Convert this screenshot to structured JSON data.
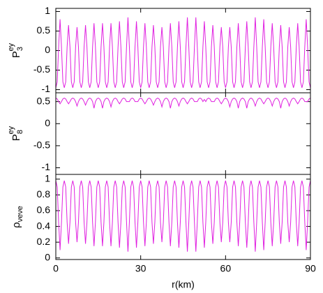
{
  "chart_data": [
    {
      "type": "line",
      "ylabel": {
        "base": "P",
        "sub": "3",
        "sup": "ey"
      },
      "x": [
        0,
        0.5,
        1,
        1.5,
        2,
        2.5,
        3,
        3.5,
        4,
        4.5,
        5,
        5.5,
        6,
        6.5,
        7,
        7.5,
        8,
        8.5,
        9,
        9.5,
        10,
        10.5,
        11,
        11.5,
        12,
        12.5,
        13,
        13.5,
        14,
        14.5,
        15,
        15.5,
        16,
        16.5,
        17,
        17.5,
        18,
        18.5,
        19,
        19.5,
        20,
        20.5,
        21,
        21.5,
        22,
        22.5,
        23,
        23.5,
        24,
        24.5,
        25,
        25.5,
        26,
        26.5,
        27,
        27.5,
        28,
        28.5,
        29,
        29.5,
        30,
        30.5,
        31,
        31.5,
        32,
        32.5,
        33,
        33.5,
        34,
        34.5,
        35,
        35.5,
        36,
        36.5,
        37,
        37.5,
        38,
        38.5,
        39,
        39.5,
        40,
        40.5,
        41,
        41.5,
        42,
        42.5,
        43,
        43.5,
        44,
        44.5,
        45,
        45.5,
        46,
        46.5,
        47,
        47.5,
        48,
        48.5,
        49,
        49.5,
        50,
        50.5,
        51,
        51.5,
        52,
        52.5,
        53,
        53.5,
        54,
        54.5,
        55,
        55.5,
        56,
        56.5,
        57,
        57.5,
        58,
        58.5,
        59,
        59.5,
        60,
        60.5,
        61,
        61.5,
        62,
        62.5,
        63,
        63.5,
        64,
        64.5,
        65,
        65.5,
        66,
        66.5,
        67,
        67.5,
        68,
        68.5,
        69,
        69.5,
        70,
        70.5,
        71,
        71.5,
        72,
        72.5,
        73,
        73.5,
        74,
        74.5,
        75,
        75.5,
        76,
        76.5,
        77,
        77.5,
        78,
        78.5,
        79,
        79.5,
        80,
        80.5,
        81,
        81.5,
        82,
        82.5,
        83,
        83.5,
        84,
        84.5,
        85,
        85.5,
        86,
        86.5,
        87,
        87.5,
        88,
        88.5,
        89,
        89.5,
        90
      ],
      "series": [
        {
          "color": "#e020e0",
          "values": [
            -0.95,
            -0.8,
            0.1,
            0.8,
            0.1,
            -0.8,
            -0.95,
            -0.8,
            0.1,
            0.65,
            0.1,
            -0.8,
            -0.95,
            -0.8,
            0.1,
            0.6,
            0.1,
            -0.8,
            -0.95,
            -0.8,
            0.1,
            0.65,
            0.1,
            -0.8,
            -0.95,
            -0.8,
            0.1,
            0.7,
            0.1,
            -0.8,
            -0.95,
            -0.8,
            0.1,
            0.7,
            0.1,
            -0.8,
            -0.95,
            -0.8,
            0.1,
            0.7,
            0.1,
            -0.8,
            -0.95,
            -0.8,
            0.1,
            0.75,
            0.1,
            -0.8,
            -0.95,
            -0.8,
            0.1,
            0.85,
            0.1,
            -0.8,
            -0.95,
            -0.8,
            0.1,
            0.75,
            0.1,
            -0.8,
            -0.95,
            -0.8,
            0.1,
            0.7,
            0.1,
            -0.8,
            -0.95,
            -0.8,
            0.1,
            0.65,
            0.1,
            -0.8,
            -0.95,
            -0.8,
            0.1,
            0.6,
            0.1,
            -0.8,
            -0.95,
            -0.8,
            0.1,
            0.7,
            0.1,
            -0.8,
            -0.95,
            -0.8,
            0.1,
            0.75,
            0.1,
            -0.8,
            -0.95,
            -0.8,
            0.1,
            0.85,
            0.1,
            -0.8,
            -0.95,
            -0.8,
            0.1,
            0.85,
            0.1,
            -0.8,
            -0.95,
            -0.8,
            0.1,
            0.75,
            0.1,
            -0.8,
            -0.95,
            -0.8,
            0.1,
            0.65,
            0.1,
            -0.8,
            -0.95,
            -0.8,
            0.1,
            0.6,
            0.1,
            -0.8,
            -0.95,
            -0.8,
            0.1,
            0.6,
            0.1,
            -0.8,
            -0.95,
            -0.8,
            0.1,
            0.7,
            0.1,
            -0.8,
            -0.95,
            -0.8,
            0.1,
            0.75,
            0.1,
            -0.8,
            -0.95,
            -0.8,
            0.1,
            0.85,
            0.1,
            -0.8,
            -0.95,
            -0.8,
            0.1,
            0.8,
            0.1,
            -0.8,
            -0.95,
            -0.8,
            0.1,
            0.7,
            0.1,
            -0.8,
            -0.95,
            -0.8,
            0.1,
            0.65,
            0.1,
            -0.8,
            -0.95,
            -0.8,
            0.1,
            0.6,
            0.1,
            -0.8,
            -0.95,
            -0.8,
            0.1,
            0.7,
            0.1,
            -0.8,
            -0.95,
            -0.8,
            0.1,
            0.8,
            0.1,
            -0.8,
            -0.95
          ]
        }
      ],
      "xlim": [
        0,
        90
      ],
      "xticks": [
        0,
        30,
        60,
        90
      ],
      "ylim": [
        -1.08,
        1.08
      ],
      "yticks": [
        -1,
        -0.5,
        0,
        0.5,
        1
      ]
    },
    {
      "type": "line",
      "ylabel": {
        "base": "P",
        "sub": "8",
        "sup": "ey"
      },
      "x": [
        0,
        0.5,
        1,
        1.5,
        2,
        2.5,
        3,
        3.5,
        4,
        4.5,
        5,
        5.5,
        6,
        6.5,
        7,
        7.5,
        8,
        8.5,
        9,
        9.5,
        10,
        10.5,
        11,
        11.5,
        12,
        12.5,
        13,
        13.5,
        14,
        14.5,
        15,
        15.5,
        16,
        16.5,
        17,
        17.5,
        18,
        18.5,
        19,
        19.5,
        20,
        20.5,
        21,
        21.5,
        22,
        22.5,
        23,
        23.5,
        24,
        24.5,
        25,
        25.5,
        26,
        26.5,
        27,
        27.5,
        28,
        28.5,
        29,
        29.5,
        30,
        30.5,
        31,
        31.5,
        32,
        32.5,
        33,
        33.5,
        34,
        34.5,
        35,
        35.5,
        36,
        36.5,
        37,
        37.5,
        38,
        38.5,
        39,
        39.5,
        40,
        40.5,
        41,
        41.5,
        42,
        42.5,
        43,
        43.5,
        44,
        44.5,
        45,
        45.5,
        46,
        46.5,
        47,
        47.5,
        48,
        48.5,
        49,
        49.5,
        50,
        50.5,
        51,
        51.5,
        52,
        52.5,
        53,
        53.5,
        54,
        54.5,
        55,
        55.5,
        56,
        56.5,
        57,
        57.5,
        58,
        58.5,
        59,
        59.5,
        60,
        60.5,
        61,
        61.5,
        62,
        62.5,
        63,
        63.5,
        64,
        64.5,
        65,
        65.5,
        66,
        66.5,
        67,
        67.5,
        68,
        68.5,
        69,
        69.5,
        70,
        70.5,
        71,
        71.5,
        72,
        72.5,
        73,
        73.5,
        74,
        74.5,
        75,
        75.5,
        76,
        76.5,
        77,
        77.5,
        78,
        78.5,
        79,
        79.5,
        80,
        80.5,
        81,
        81.5,
        82,
        82.5,
        83,
        83.5,
        84,
        84.5,
        85,
        85.5,
        86,
        86.5,
        87,
        87.5,
        88,
        88.5,
        89,
        89.5,
        90
      ],
      "series": [
        {
          "color": "#e020e0",
          "values": [
            0.58,
            0.56,
            0.5,
            0.45,
            0.5,
            0.56,
            0.58,
            0.56,
            0.5,
            0.45,
            0.5,
            0.56,
            0.58,
            0.56,
            0.5,
            0.4,
            0.5,
            0.56,
            0.58,
            0.56,
            0.5,
            0.42,
            0.5,
            0.56,
            0.58,
            0.56,
            0.5,
            0.35,
            0.5,
            0.56,
            0.58,
            0.56,
            0.5,
            0.35,
            0.5,
            0.56,
            0.58,
            0.56,
            0.5,
            0.38,
            0.5,
            0.56,
            0.58,
            0.56,
            0.5,
            0.45,
            0.5,
            0.56,
            0.58,
            0.56,
            0.5,
            0.5,
            0.5,
            0.56,
            0.58,
            0.56,
            0.5,
            0.5,
            0.5,
            0.56,
            0.58,
            0.56,
            0.5,
            0.45,
            0.5,
            0.56,
            0.58,
            0.56,
            0.5,
            0.42,
            0.5,
            0.56,
            0.58,
            0.56,
            0.5,
            0.38,
            0.5,
            0.56,
            0.58,
            0.56,
            0.5,
            0.35,
            0.5,
            0.56,
            0.58,
            0.56,
            0.5,
            0.4,
            0.5,
            0.56,
            0.58,
            0.56,
            0.5,
            0.45,
            0.5,
            0.56,
            0.58,
            0.56,
            0.5,
            0.5,
            0.5,
            0.56,
            0.58,
            0.56,
            0.5,
            0.55,
            0.5,
            0.56,
            0.58,
            0.56,
            0.5,
            0.5,
            0.5,
            0.56,
            0.58,
            0.56,
            0.5,
            0.45,
            0.5,
            0.56,
            0.58,
            0.56,
            0.5,
            0.38,
            0.5,
            0.56,
            0.58,
            0.56,
            0.5,
            0.35,
            0.5,
            0.56,
            0.58,
            0.56,
            0.5,
            0.35,
            0.5,
            0.56,
            0.58,
            0.56,
            0.5,
            0.4,
            0.5,
            0.56,
            0.58,
            0.56,
            0.5,
            0.45,
            0.5,
            0.56,
            0.58,
            0.56,
            0.5,
            0.4,
            0.5,
            0.56,
            0.58,
            0.56,
            0.5,
            0.35,
            0.5,
            0.56,
            0.58,
            0.56,
            0.5,
            0.4,
            0.5,
            0.56,
            0.58,
            0.56,
            0.5,
            0.45,
            0.5,
            0.56,
            0.58,
            0.56,
            0.5,
            0.5,
            0.5,
            0.56,
            0.58
          ]
        }
      ],
      "xlim": [
        0,
        90
      ],
      "xticks": [
        0,
        30,
        60,
        90
      ],
      "ylim": [
        -1.15,
        0.7
      ],
      "yticks": [
        -1,
        -0.5,
        0,
        0.5
      ]
    },
    {
      "type": "line",
      "ylabel": {
        "base": "ρ",
        "sub": "νeνe"
      },
      "xlabel": "r(km)",
      "x": [
        0,
        0.5,
        1,
        1.5,
        2,
        2.5,
        3,
        3.5,
        4,
        4.5,
        5,
        5.5,
        6,
        6.5,
        7,
        7.5,
        8,
        8.5,
        9,
        9.5,
        10,
        10.5,
        11,
        11.5,
        12,
        12.5,
        13,
        13.5,
        14,
        14.5,
        15,
        15.5,
        16,
        16.5,
        17,
        17.5,
        18,
        18.5,
        19,
        19.5,
        20,
        20.5,
        21,
        21.5,
        22,
        22.5,
        23,
        23.5,
        24,
        24.5,
        25,
        25.5,
        26,
        26.5,
        27,
        27.5,
        28,
        28.5,
        29,
        29.5,
        30,
        30.5,
        31,
        31.5,
        32,
        32.5,
        33,
        33.5,
        34,
        34.5,
        35,
        35.5,
        36,
        36.5,
        37,
        37.5,
        38,
        38.5,
        39,
        39.5,
        40,
        40.5,
        41,
        41.5,
        42,
        42.5,
        43,
        43.5,
        44,
        44.5,
        45,
        45.5,
        46,
        46.5,
        47,
        47.5,
        48,
        48.5,
        49,
        49.5,
        50,
        50.5,
        51,
        51.5,
        52,
        52.5,
        53,
        53.5,
        54,
        54.5,
        55,
        55.5,
        56,
        56.5,
        57,
        57.5,
        58,
        58.5,
        59,
        59.5,
        60,
        60.5,
        61,
        61.5,
        62,
        62.5,
        63,
        63.5,
        64,
        64.5,
        65,
        65.5,
        66,
        66.5,
        67,
        67.5,
        68,
        68.5,
        69,
        69.5,
        70,
        70.5,
        71,
        71.5,
        72,
        72.5,
        73,
        73.5,
        74,
        74.5,
        75,
        75.5,
        76,
        76.5,
        77,
        77.5,
        78,
        78.5,
        79,
        79.5,
        80,
        80.5,
        81,
        81.5,
        82,
        82.5,
        83,
        83.5,
        84,
        84.5,
        85,
        85.5,
        86,
        86.5,
        87,
        87.5,
        88,
        88.5,
        89,
        89.5,
        90
      ],
      "series": [
        {
          "color": "#e020e0",
          "values": [
            0.98,
            0.9,
            0.45,
            0.1,
            0.45,
            0.9,
            0.98,
            0.9,
            0.45,
            0.18,
            0.45,
            0.9,
            0.98,
            0.9,
            0.45,
            0.2,
            0.45,
            0.9,
            0.98,
            0.9,
            0.45,
            0.18,
            0.45,
            0.9,
            0.98,
            0.9,
            0.45,
            0.15,
            0.45,
            0.9,
            0.98,
            0.9,
            0.45,
            0.15,
            0.45,
            0.9,
            0.98,
            0.9,
            0.45,
            0.15,
            0.45,
            0.9,
            0.98,
            0.9,
            0.45,
            0.13,
            0.45,
            0.9,
            0.98,
            0.9,
            0.45,
            0.08,
            0.45,
            0.9,
            0.98,
            0.9,
            0.45,
            0.13,
            0.45,
            0.9,
            0.98,
            0.9,
            0.45,
            0.15,
            0.45,
            0.9,
            0.98,
            0.9,
            0.45,
            0.18,
            0.45,
            0.9,
            0.98,
            0.9,
            0.45,
            0.2,
            0.45,
            0.9,
            0.98,
            0.9,
            0.45,
            0.15,
            0.45,
            0.9,
            0.98,
            0.9,
            0.45,
            0.13,
            0.45,
            0.9,
            0.98,
            0.9,
            0.45,
            0.08,
            0.45,
            0.9,
            0.98,
            0.9,
            0.45,
            0.08,
            0.45,
            0.9,
            0.98,
            0.9,
            0.45,
            0.13,
            0.45,
            0.9,
            0.98,
            0.9,
            0.45,
            0.18,
            0.45,
            0.9,
            0.98,
            0.9,
            0.45,
            0.2,
            0.45,
            0.9,
            0.98,
            0.9,
            0.45,
            0.2,
            0.45,
            0.9,
            0.98,
            0.9,
            0.45,
            0.15,
            0.45,
            0.9,
            0.98,
            0.9,
            0.45,
            0.13,
            0.45,
            0.9,
            0.98,
            0.9,
            0.45,
            0.08,
            0.45,
            0.9,
            0.98,
            0.9,
            0.45,
            0.1,
            0.45,
            0.9,
            0.98,
            0.9,
            0.45,
            0.15,
            0.45,
            0.9,
            0.98,
            0.9,
            0.45,
            0.18,
            0.45,
            0.9,
            0.98,
            0.9,
            0.45,
            0.2,
            0.45,
            0.9,
            0.98,
            0.9,
            0.45,
            0.15,
            0.45,
            0.9,
            0.98,
            0.9,
            0.45,
            0.1,
            0.45,
            0.9,
            0.98
          ]
        }
      ],
      "xlim": [
        0,
        90
      ],
      "xticks": [
        0,
        30,
        60,
        90
      ],
      "ylim": [
        -0.02,
        1.06
      ],
      "yticks": [
        0,
        0.2,
        0.4,
        0.6,
        0.8,
        1
      ]
    }
  ]
}
